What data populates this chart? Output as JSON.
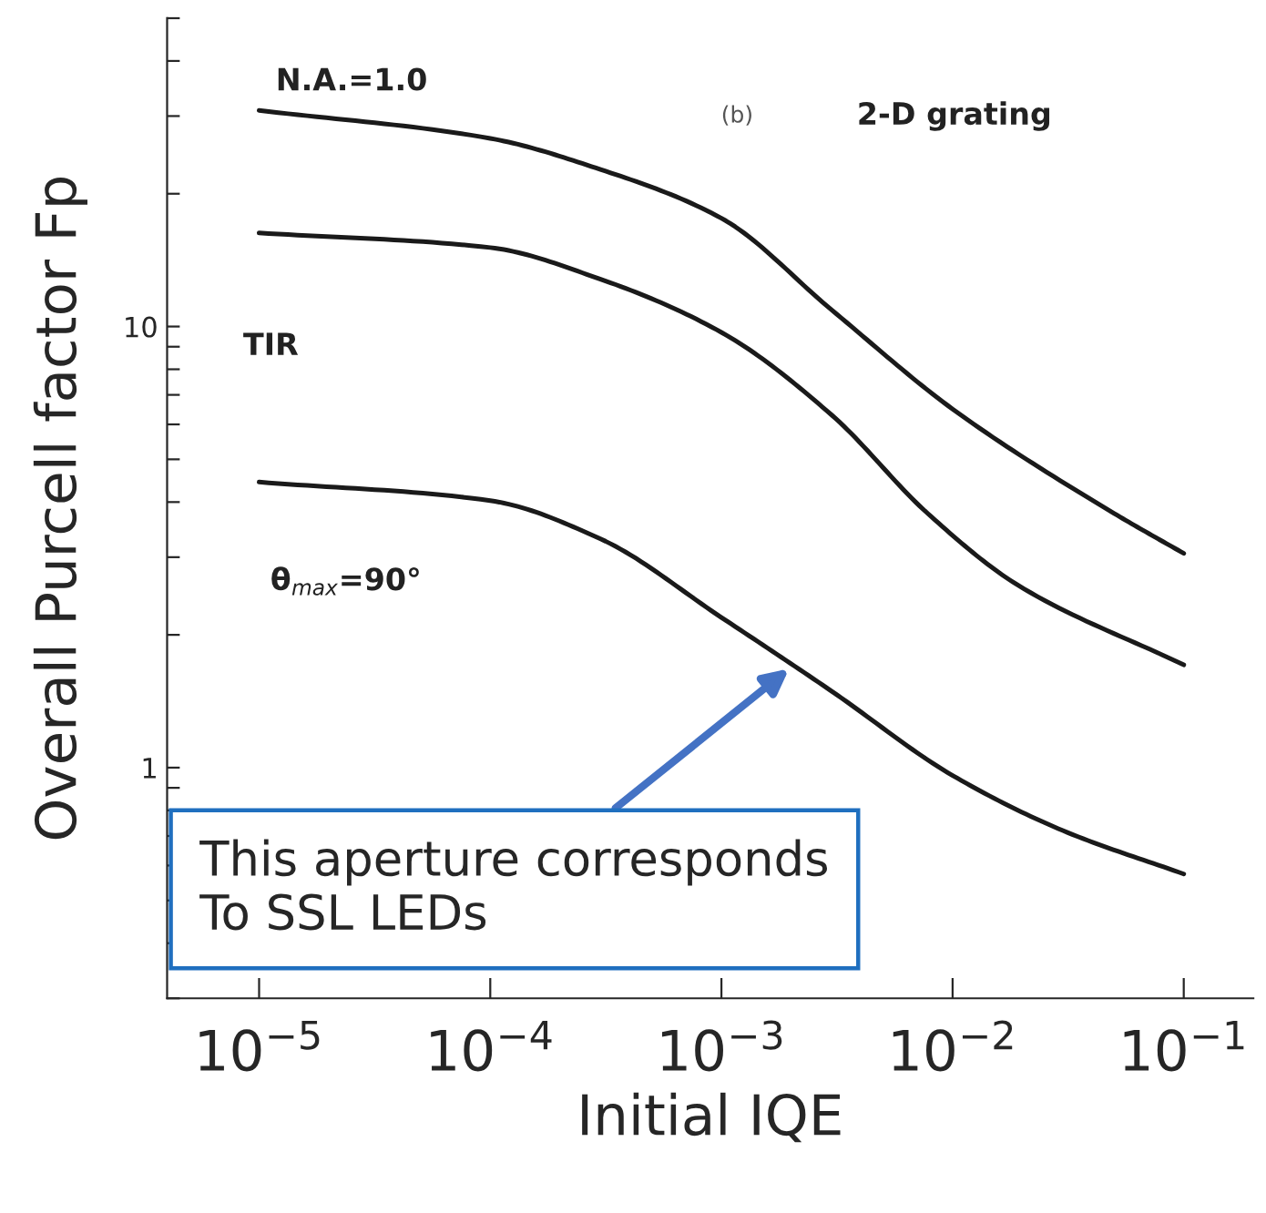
{
  "chart_data": {
    "type": "line",
    "xlabel": "Initial IQE",
    "ylabel": "Overall Purcell factor Fp",
    "log": "xy",
    "grid": false,
    "legend": false,
    "marker": "none",
    "line_style": "solid",
    "xlim": [
      4e-06,
      0.2
    ],
    "ylim": [
      0.3,
      50
    ],
    "xticks": [
      {
        "value": 1e-05,
        "label": "10$^{−5}$"
      },
      {
        "value": 0.0001,
        "label": "10$^{−4}$"
      },
      {
        "value": 0.001,
        "label": "10$^{−3}$"
      },
      {
        "value": 0.01,
        "label": "10$^{−2}$"
      },
      {
        "value": 0.1,
        "label": "10$^{−1}$"
      }
    ],
    "yticks": [
      {
        "value": 0.3,
        "label": null
      },
      {
        "value": 0.4,
        "label": null
      },
      {
        "value": 0.5,
        "label": null
      },
      {
        "value": 0.6,
        "label": null
      },
      {
        "value": 0.7,
        "label": null
      },
      {
        "value": 0.8,
        "label": null
      },
      {
        "value": 0.9,
        "label": null
      },
      1,
      {
        "value": 2,
        "label": null
      },
      {
        "value": 3,
        "label": null
      },
      {
        "value": 4,
        "label": null
      },
      {
        "value": 5,
        "label": null
      },
      {
        "value": 6,
        "label": null
      },
      {
        "value": 7,
        "label": null
      },
      {
        "value": 8,
        "label": null
      },
      {
        "value": 9,
        "label": null
      },
      10,
      {
        "value": 20,
        "label": null
      },
      {
        "value": 30,
        "label": null
      },
      {
        "value": 40,
        "label": null
      },
      {
        "value": 50,
        "label": null
      }
    ],
    "series": [
      {
        "color": "#1a1a1a",
        "x": [
          1e-05,
          0.0001,
          0.0003,
          0.001,
          0.003,
          0.01,
          0.05,
          0.1
        ],
        "values": [
          30.9,
          26.7,
          22.7,
          17.6,
          10.9,
          6.5,
          3.77,
          3.06
        ]
      },
      {
        "color": "#1a1a1a",
        "x": [
          1e-05,
          0.0001,
          0.0003,
          0.001,
          0.003,
          0.0078,
          0.019,
          0.1
        ],
        "values": [
          16.3,
          15.1,
          12.8,
          9.7,
          6.3,
          3.77,
          2.6,
          1.71
        ]
      },
      {
        "color": "#1a1a1a",
        "x": [
          1e-05,
          0.0001,
          0.0003,
          0.001,
          0.003,
          0.01,
          0.03,
          0.1
        ],
        "values": [
          4.44,
          4.03,
          3.3,
          2.19,
          1.49,
          0.96,
          0.72,
          0.574
        ]
      }
    ],
    "annotations": [
      "N.A.=1.0",
      "TIR",
      "θ$_{max}$=90°",
      "(b)",
      "2-D grating",
      "This aperture corresponds\nTo SSL LEDs"
    ]
  }
}
